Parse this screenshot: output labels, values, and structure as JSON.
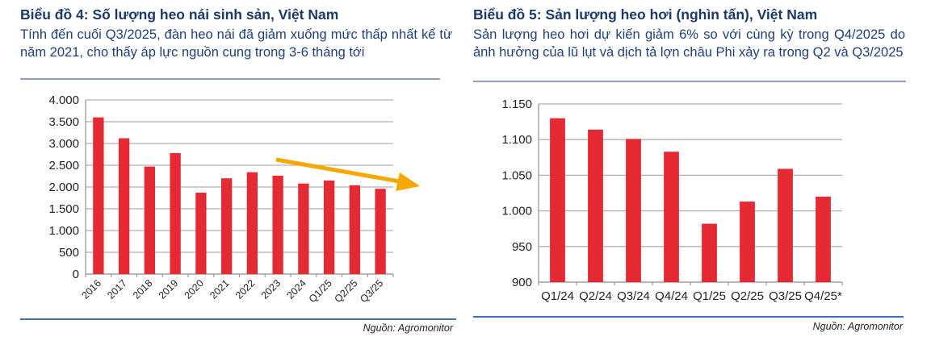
{
  "chart_data": [
    {
      "type": "bar",
      "title": "Biểu đồ 4: Số lượng heo nái sinh sản, Việt Nam",
      "subtitle": "Tính đến cuối Q3/2025, đàn heo nái đã giảm xuống mức thấp nhất kể từ năm 2021, cho thấy áp lực nguồn cung trong 3-6 tháng tới",
      "categories": [
        "2016",
        "2017",
        "2018",
        "2019",
        "2020",
        "2021",
        "2022",
        "2023",
        "2024",
        "Q1/25",
        "Q2/25",
        "Q3/25"
      ],
      "values": [
        3600,
        3120,
        2470,
        2780,
        1870,
        2200,
        2340,
        2260,
        2080,
        2150,
        2040,
        1960
      ],
      "ylim": [
        0,
        4000
      ],
      "yticks": [
        0,
        500,
        1000,
        1500,
        2000,
        2500,
        3000,
        3500,
        4000
      ],
      "ytick_labels": [
        "0",
        "500",
        "1.000",
        "1.500",
        "2.000",
        "2.500",
        "3.000",
        "3.500",
        "4.000"
      ],
      "annotation": "downward trend arrow",
      "grid": true,
      "source": "Nguồn: Agromonitor",
      "bar_color": "#e52a33",
      "arrow_color": "#f7a800"
    },
    {
      "type": "bar",
      "title": "Biểu đồ 5: Sản lượng heo hơi (nghìn tấn), Việt Nam",
      "subtitle": "Sản lượng heo hơi dự kiến giảm 6% so với cùng kỳ trong Q4/2025 do ảnh hưởng của lũ lụt và dịch tả lợn châu Phi xảy ra trong Q2 và Q3/2025",
      "categories": [
        "Q1/24",
        "Q2/24",
        "Q3/24",
        "Q4/24",
        "Q1/25",
        "Q2/25",
        "Q3/25",
        "Q4/25*"
      ],
      "values": [
        1130,
        1114,
        1101,
        1083,
        982,
        1013,
        1059,
        1020
      ],
      "ylim": [
        900,
        1150
      ],
      "yticks": [
        900,
        950,
        1000,
        1050,
        1100,
        1150
      ],
      "ytick_labels": [
        "900",
        "950",
        "1.000",
        "1.050",
        "1.100",
        "1.150"
      ],
      "grid": true,
      "source": "Nguồn: Agromonitor",
      "bar_color": "#e52a33"
    }
  ]
}
